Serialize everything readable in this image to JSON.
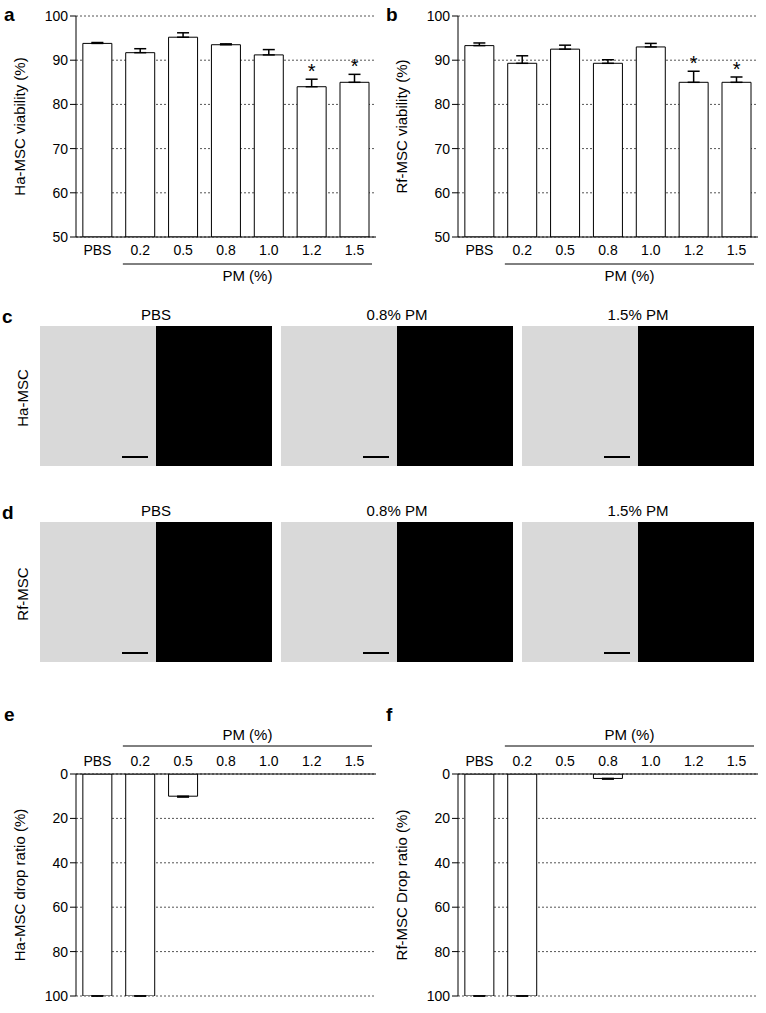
{
  "chart_data": [
    {
      "type": "bar",
      "title": "a",
      "categories": [
        "PBS",
        "0.2",
        "0.5",
        "0.8",
        "1.0",
        "1.2",
        "1.5"
      ],
      "values": [
        93.8,
        91.7,
        95.2,
        93.5,
        91.2,
        84.0,
        85.0
      ],
      "errors": [
        0.2,
        0.9,
        1.0,
        0.2,
        1.2,
        1.7,
        1.8
      ],
      "color": "#ffffff",
      "ylabel": "Ha-MSC viability (%)",
      "xlabel": "PM (%)",
      "ylim": [
        50,
        100
      ],
      "yticks": [
        50,
        60,
        70,
        80,
        90,
        100
      ],
      "grid": true,
      "annotations": [
        {
          "category": "1.2",
          "text": "*"
        },
        {
          "category": "1.5",
          "text": "*"
        }
      ]
    },
    {
      "type": "bar",
      "title": "b",
      "categories": [
        "PBS",
        "0.2",
        "0.5",
        "0.8",
        "1.0",
        "1.2",
        "1.5"
      ],
      "values": [
        93.3,
        89.3,
        92.5,
        89.3,
        93.0,
        85.0,
        85.0
      ],
      "errors": [
        0.6,
        1.7,
        0.9,
        0.8,
        0.8,
        2.5,
        1.2
      ],
      "color": "#ffffff",
      "ylabel": "Rf-MSC viability (%)",
      "xlabel": "PM (%)",
      "ylim": [
        50,
        100
      ],
      "yticks": [
        50,
        60,
        70,
        80,
        90,
        100
      ],
      "grid": true,
      "annotations": [
        {
          "category": "1.2",
          "text": "*"
        },
        {
          "category": "1.5",
          "text": "*"
        }
      ]
    },
    {
      "type": "bar",
      "title": "e",
      "categories": [
        "PBS",
        "0.2",
        "0.5",
        "0.8",
        "1.0",
        "1.2",
        "1.5"
      ],
      "values": [
        100,
        100,
        10,
        0,
        0,
        0,
        0
      ],
      "errors": [
        0,
        0,
        0.4,
        0,
        0,
        0,
        0
      ],
      "color": "#ffffff",
      "ylabel": "Ha-MSC drop ratio (%)",
      "xlabel": "PM (%)",
      "ylim": [
        100,
        0
      ],
      "yticks": [
        0,
        20,
        40,
        60,
        80,
        100
      ],
      "grid": true
    },
    {
      "type": "bar",
      "title": "f",
      "categories": [
        "PBS",
        "0.2",
        "0.5",
        "0.8",
        "1.0",
        "1.2",
        "1.5"
      ],
      "values": [
        100,
        100,
        0,
        2,
        0,
        0,
        0
      ],
      "errors": [
        0,
        0,
        0,
        0.3,
        0,
        0,
        0
      ],
      "color": "#ffffff",
      "ylabel": "Rf-MSC Drop ratio (%)",
      "xlabel": "PM (%)",
      "ylim": [
        100,
        0
      ],
      "yticks": [
        0,
        20,
        40,
        60,
        80,
        100
      ],
      "grid": true
    }
  ],
  "image_panels": [
    {
      "title": "c",
      "row_label": "Ha-MSC",
      "columns": [
        "PBS",
        "0.8% PM",
        "1.5% PM"
      ]
    },
    {
      "title": "d",
      "row_label": "Rf-MSC",
      "columns": [
        "PBS",
        "0.8% PM",
        "1.5% PM"
      ]
    }
  ]
}
